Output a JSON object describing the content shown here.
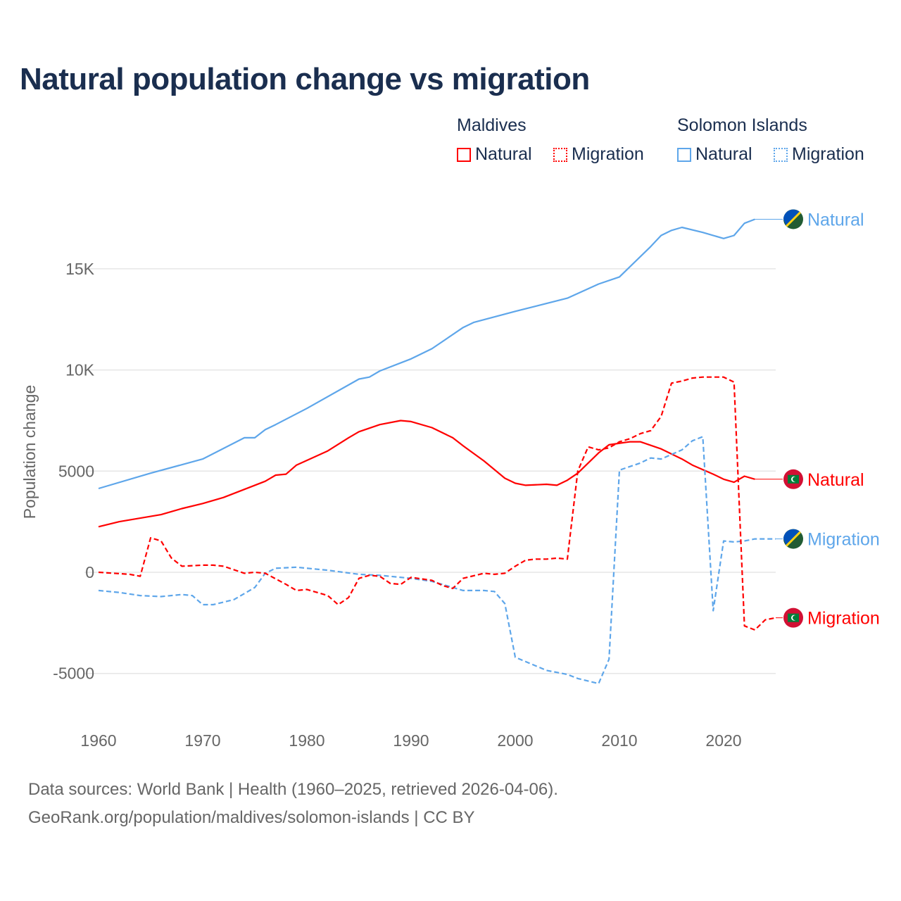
{
  "title": "Natural population change vs migration",
  "legend": {
    "groups": [
      {
        "name": "Maldives",
        "color": "#ff0000",
        "items": [
          "Natural",
          "Migration"
        ]
      },
      {
        "name": "Solomon Islands",
        "color": "#5ea6ea",
        "items": [
          "Natural",
          "Migration"
        ]
      }
    ]
  },
  "footer": {
    "line1": "Data sources: World Bank | Health (1960–2025, retrieved 2026-04-06).",
    "line2": "GeoRank.org/population/maldives/solomon-islands | CC BY"
  },
  "chart_data": {
    "type": "line",
    "title": "Natural population change vs migration",
    "xlabel": "",
    "ylabel": "Population change",
    "xlim": [
      1960,
      2025
    ],
    "ylim": [
      -7000,
      18500
    ],
    "xticks": [
      1960,
      1970,
      1980,
      1990,
      2000,
      2010,
      2020
    ],
    "yticks": [
      {
        "v": -5000,
        "label": "-5000"
      },
      {
        "v": 0,
        "label": "0"
      },
      {
        "v": 5000,
        "label": "5000"
      },
      {
        "v": 10000,
        "label": "10K"
      },
      {
        "v": 15000,
        "label": "15K"
      }
    ],
    "grid": true,
    "series": [
      {
        "name": "Solomon Islands Natural",
        "end_label": "Natural",
        "color": "#5ea6ea",
        "dash": false,
        "flag": "solomon",
        "points": [
          [
            1960,
            4140
          ],
          [
            1965,
            4900
          ],
          [
            1970,
            5600
          ],
          [
            1974,
            6650
          ],
          [
            1975,
            6650
          ],
          [
            1976,
            7050
          ],
          [
            1977,
            7300
          ],
          [
            1980,
            8100
          ],
          [
            1985,
            9550
          ],
          [
            1986,
            9650
          ],
          [
            1987,
            9950
          ],
          [
            1990,
            10550
          ],
          [
            1992,
            11050
          ],
          [
            1995,
            12100
          ],
          [
            1996,
            12350
          ],
          [
            2000,
            12900
          ],
          [
            2005,
            13550
          ],
          [
            2008,
            14250
          ],
          [
            2010,
            14600
          ],
          [
            2013,
            16100
          ],
          [
            2014,
            16650
          ],
          [
            2015,
            16900
          ],
          [
            2016,
            17050
          ],
          [
            2018,
            16800
          ],
          [
            2020,
            16500
          ],
          [
            2021,
            16650
          ],
          [
            2022,
            17250
          ],
          [
            2023,
            17450
          ]
        ]
      },
      {
        "name": "Maldives Natural",
        "end_label": "Natural",
        "color": "#ff0000",
        "dash": false,
        "flag": "maldives",
        "points": [
          [
            1960,
            2250
          ],
          [
            1962,
            2500
          ],
          [
            1966,
            2850
          ],
          [
            1968,
            3150
          ],
          [
            1970,
            3400
          ],
          [
            1972,
            3700
          ],
          [
            1974,
            4100
          ],
          [
            1976,
            4500
          ],
          [
            1977,
            4800
          ],
          [
            1978,
            4850
          ],
          [
            1979,
            5300
          ],
          [
            1982,
            6000
          ],
          [
            1984,
            6650
          ],
          [
            1985,
            6950
          ],
          [
            1987,
            7300
          ],
          [
            1989,
            7500
          ],
          [
            1990,
            7450
          ],
          [
            1992,
            7150
          ],
          [
            1994,
            6650
          ],
          [
            1995,
            6250
          ],
          [
            1997,
            5500
          ],
          [
            1999,
            4650
          ],
          [
            2000,
            4400
          ],
          [
            2001,
            4300
          ],
          [
            2003,
            4350
          ],
          [
            2004,
            4300
          ],
          [
            2005,
            4550
          ],
          [
            2006,
            4900
          ],
          [
            2008,
            5900
          ],
          [
            2009,
            6300
          ],
          [
            2011,
            6450
          ],
          [
            2012,
            6450
          ],
          [
            2014,
            6100
          ],
          [
            2016,
            5600
          ],
          [
            2017,
            5300
          ],
          [
            2019,
            4850
          ],
          [
            2020,
            4600
          ],
          [
            2021,
            4450
          ],
          [
            2022,
            4750
          ],
          [
            2023,
            4600
          ]
        ]
      },
      {
        "name": "Solomon Islands Migration",
        "end_label": "Migration",
        "color": "#5ea6ea",
        "dash": true,
        "flag": "solomon",
        "points": [
          [
            1960,
            -900
          ],
          [
            1962,
            -1000
          ],
          [
            1964,
            -1150
          ],
          [
            1966,
            -1200
          ],
          [
            1968,
            -1100
          ],
          [
            1969,
            -1150
          ],
          [
            1970,
            -1600
          ],
          [
            1971,
            -1600
          ],
          [
            1973,
            -1350
          ],
          [
            1975,
            -750
          ],
          [
            1976,
            -50
          ],
          [
            1977,
            200
          ],
          [
            1979,
            250
          ],
          [
            1982,
            100
          ],
          [
            1985,
            -100
          ],
          [
            1987,
            -150
          ],
          [
            1990,
            -300
          ],
          [
            1992,
            -450
          ],
          [
            1994,
            -750
          ],
          [
            1995,
            -900
          ],
          [
            1997,
            -900
          ],
          [
            1998,
            -950
          ],
          [
            1999,
            -1550
          ],
          [
            2000,
            -4200
          ],
          [
            2003,
            -4850
          ],
          [
            2005,
            -5050
          ],
          [
            2006,
            -5250
          ],
          [
            2008,
            -5500
          ],
          [
            2009,
            -4300
          ],
          [
            2010,
            5050
          ],
          [
            2012,
            5400
          ],
          [
            2013,
            5650
          ],
          [
            2014,
            5600
          ],
          [
            2016,
            6050
          ],
          [
            2017,
            6500
          ],
          [
            2018,
            6700
          ],
          [
            2019,
            -1900
          ],
          [
            2020,
            1550
          ],
          [
            2021,
            1500
          ],
          [
            2022,
            1550
          ],
          [
            2023,
            1650
          ],
          [
            2024,
            1650
          ],
          [
            2025,
            1650
          ]
        ]
      },
      {
        "name": "Maldives Migration",
        "end_label": "Migration",
        "color": "#ff0000",
        "dash": true,
        "flag": "maldives",
        "points": [
          [
            1960,
            0
          ],
          [
            1963,
            -100
          ],
          [
            1964,
            -200
          ],
          [
            1965,
            1700
          ],
          [
            1966,
            1550
          ],
          [
            1967,
            700
          ],
          [
            1968,
            300
          ],
          [
            1970,
            350
          ],
          [
            1971,
            350
          ],
          [
            1972,
            300
          ],
          [
            1974,
            -50
          ],
          [
            1975,
            0
          ],
          [
            1976,
            -50
          ],
          [
            1978,
            -600
          ],
          [
            1979,
            -900
          ],
          [
            1980,
            -850
          ],
          [
            1982,
            -1150
          ],
          [
            1983,
            -1600
          ],
          [
            1984,
            -1250
          ],
          [
            1985,
            -300
          ],
          [
            1986,
            -150
          ],
          [
            1987,
            -200
          ],
          [
            1988,
            -550
          ],
          [
            1989,
            -600
          ],
          [
            1990,
            -250
          ],
          [
            1992,
            -400
          ],
          [
            1993,
            -650
          ],
          [
            1994,
            -800
          ],
          [
            1995,
            -300
          ],
          [
            1997,
            -50
          ],
          [
            1998,
            -100
          ],
          [
            1999,
            -50
          ],
          [
            2000,
            300
          ],
          [
            2001,
            600
          ],
          [
            2002,
            650
          ],
          [
            2003,
            650
          ],
          [
            2004,
            700
          ],
          [
            2005,
            650
          ],
          [
            2006,
            5000
          ],
          [
            2007,
            6200
          ],
          [
            2008,
            6050
          ],
          [
            2009,
            6150
          ],
          [
            2010,
            6450
          ],
          [
            2011,
            6600
          ],
          [
            2012,
            6850
          ],
          [
            2013,
            7000
          ],
          [
            2014,
            7700
          ],
          [
            2015,
            9350
          ],
          [
            2016,
            9450
          ],
          [
            2017,
            9600
          ],
          [
            2018,
            9650
          ],
          [
            2019,
            9650
          ],
          [
            2020,
            9650
          ],
          [
            2021,
            9400
          ],
          [
            2022,
            -2650
          ],
          [
            2023,
            -2850
          ],
          [
            2024,
            -2350
          ],
          [
            2025,
            -2250
          ]
        ]
      }
    ]
  }
}
